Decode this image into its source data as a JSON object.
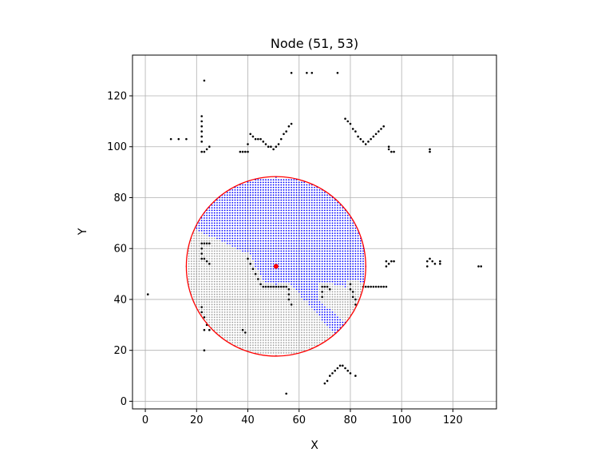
{
  "chart_data": {
    "type": "scatter",
    "title": "Node (51, 53)",
    "xlabel": "X",
    "ylabel": "Y",
    "xlim": [
      -5,
      137
    ],
    "ylim": [
      -3,
      136
    ],
    "xticks": [
      0,
      20,
      40,
      60,
      80,
      100,
      120
    ],
    "yticks": [
      0,
      20,
      40,
      60,
      80,
      100,
      120
    ],
    "grid": true,
    "node": {
      "x": 51,
      "y": 53,
      "color": "#ff0000"
    },
    "sensor_circle": {
      "center": [
        51,
        53
      ],
      "radius": 35,
      "color": "#ff0000"
    },
    "colors": {
      "obstacle": "#000000",
      "visible": "#0000ff",
      "occluded": "#a0a0a0"
    },
    "obstacle_points": [
      [
        1,
        42
      ],
      [
        10,
        103
      ],
      [
        13,
        103
      ],
      [
        16,
        103
      ],
      [
        23,
        126
      ],
      [
        22,
        112
      ],
      [
        22,
        110
      ],
      [
        22,
        108
      ],
      [
        22,
        106
      ],
      [
        22,
        104
      ],
      [
        22,
        102
      ],
      [
        22,
        98
      ],
      [
        23,
        98
      ],
      [
        24,
        99
      ],
      [
        25,
        100
      ],
      [
        37,
        98
      ],
      [
        38,
        98
      ],
      [
        39,
        98
      ],
      [
        40,
        98
      ],
      [
        40,
        101
      ],
      [
        41,
        105
      ],
      [
        42,
        104
      ],
      [
        43,
        103
      ],
      [
        44,
        103
      ],
      [
        45,
        103
      ],
      [
        46,
        102
      ],
      [
        47,
        101
      ],
      [
        48,
        100
      ],
      [
        49,
        100
      ],
      [
        50,
        99
      ],
      [
        51,
        100
      ],
      [
        52,
        101
      ],
      [
        53,
        103
      ],
      [
        54,
        105
      ],
      [
        55,
        106
      ],
      [
        56,
        108
      ],
      [
        57,
        109
      ],
      [
        57,
        129
      ],
      [
        63,
        129
      ],
      [
        65,
        129
      ],
      [
        75,
        129
      ],
      [
        78,
        111
      ],
      [
        79,
        110
      ],
      [
        80,
        109
      ],
      [
        81,
        107
      ],
      [
        82,
        106
      ],
      [
        83,
        104
      ],
      [
        84,
        103
      ],
      [
        85,
        102
      ],
      [
        86,
        101
      ],
      [
        87,
        102
      ],
      [
        88,
        103
      ],
      [
        89,
        104
      ],
      [
        90,
        105
      ],
      [
        91,
        106
      ],
      [
        92,
        107
      ],
      [
        93,
        108
      ],
      [
        95,
        100
      ],
      [
        95,
        99
      ],
      [
        96,
        98
      ],
      [
        97,
        98
      ],
      [
        111,
        99
      ],
      [
        111,
        98
      ],
      [
        22,
        62
      ],
      [
        23,
        62
      ],
      [
        24,
        62
      ],
      [
        25,
        62
      ],
      [
        22,
        60
      ],
      [
        22,
        58
      ],
      [
        22,
        56
      ],
      [
        23,
        56
      ],
      [
        24,
        55
      ],
      [
        25,
        54
      ],
      [
        22,
        35
      ],
      [
        22,
        37
      ],
      [
        23,
        33
      ],
      [
        23,
        28
      ],
      [
        23,
        20
      ],
      [
        24,
        30
      ],
      [
        25,
        28
      ],
      [
        38,
        28
      ],
      [
        39,
        27
      ],
      [
        40,
        56
      ],
      [
        41,
        54
      ],
      [
        42,
        52
      ],
      [
        43,
        50
      ],
      [
        44,
        48
      ],
      [
        45,
        46
      ],
      [
        46,
        45
      ],
      [
        47,
        45
      ],
      [
        48,
        45
      ],
      [
        49,
        45
      ],
      [
        50,
        45
      ],
      [
        51,
        45
      ],
      [
        52,
        45
      ],
      [
        53,
        45
      ],
      [
        54,
        45
      ],
      [
        55,
        45
      ],
      [
        56,
        44
      ],
      [
        56,
        42
      ],
      [
        56,
        40
      ],
      [
        57,
        38
      ],
      [
        69,
        45
      ],
      [
        69,
        43
      ],
      [
        69,
        41
      ],
      [
        70,
        45
      ],
      [
        71,
        45
      ],
      [
        72,
        44
      ],
      [
        80,
        46
      ],
      [
        80,
        44
      ],
      [
        81,
        43
      ],
      [
        81,
        41
      ],
      [
        82,
        40
      ],
      [
        82,
        38
      ],
      [
        85,
        45
      ],
      [
        86,
        45
      ],
      [
        87,
        45
      ],
      [
        88,
        45
      ],
      [
        89,
        45
      ],
      [
        90,
        45
      ],
      [
        91,
        45
      ],
      [
        92,
        45
      ],
      [
        93,
        45
      ],
      [
        94,
        45
      ],
      [
        94,
        55
      ],
      [
        94,
        53
      ],
      [
        95,
        54
      ],
      [
        96,
        55
      ],
      [
        97,
        55
      ],
      [
        110,
        55
      ],
      [
        110,
        53
      ],
      [
        111,
        56
      ],
      [
        112,
        55
      ],
      [
        113,
        54
      ],
      [
        115,
        55
      ],
      [
        115,
        54
      ],
      [
        130,
        53
      ],
      [
        131,
        53
      ],
      [
        55,
        3
      ],
      [
        70,
        7
      ],
      [
        71,
        8
      ],
      [
        72,
        10
      ],
      [
        73,
        11
      ],
      [
        74,
        12
      ],
      [
        75,
        13
      ],
      [
        76,
        14
      ],
      [
        77,
        14
      ],
      [
        78,
        13
      ],
      [
        79,
        12
      ],
      [
        80,
        11
      ],
      [
        82,
        10
      ]
    ]
  }
}
